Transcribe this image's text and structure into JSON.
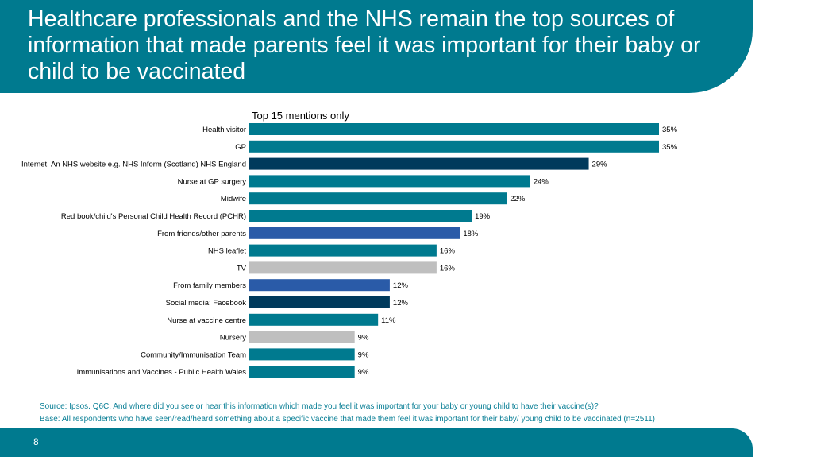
{
  "title": "Healthcare professionals and the NHS remain the top sources of information that made parents feel it was important for their baby or child to be vaccinated",
  "subtitle": "Top 15 mentions only",
  "notes": {
    "source": "Source: Ipsos. Q6C. And where did you see or hear this information which made you feel it was important for your baby or young child to have their vaccine(s)?",
    "base": "Base: All respondents who have seen/read/heard something about a specific vaccine that made them feel it was important for their baby/ young child to be vaccinated (n=2511)"
  },
  "page_number": "8",
  "colors": {
    "brand_teal": "#007a8f",
    "navy": "#003a5c",
    "blue": "#2a5ba8",
    "grey": "#bfbfbf"
  },
  "chart_data": {
    "type": "bar",
    "orientation": "horizontal",
    "xlim": [
      0,
      35
    ],
    "grid": false,
    "value_suffix": "%",
    "categories": [
      "Health visitor",
      "GP",
      "Internet: An NHS website e.g. NHS Inform (Scotland) NHS England",
      "Nurse at GP surgery",
      "Midwife",
      "Red book/child's Personal Child Health Record (PCHR)",
      "From friends/other parents",
      "NHS leaflet",
      "TV",
      "From family members",
      "Social media: Facebook",
      "Nurse at vaccine centre",
      "Nursery",
      "Community/Immunisation Team",
      "Immunisations and Vaccines - Public Health Wales"
    ],
    "values": [
      35,
      35,
      29,
      24,
      22,
      19,
      18,
      16,
      16,
      12,
      12,
      11,
      9,
      9,
      9
    ],
    "labels": [
      "35%",
      "35%",
      "29%",
      "24%",
      "22%",
      "19%",
      "18%",
      "16%",
      "16%",
      "12%",
      "12%",
      "11%",
      "9%",
      "9%",
      "9%"
    ],
    "bar_colors": [
      "#007a8f",
      "#007a8f",
      "#003a5c",
      "#007a8f",
      "#007a8f",
      "#007a8f",
      "#2a5ba8",
      "#007a8f",
      "#bfbfbf",
      "#2a5ba8",
      "#003a5c",
      "#007a8f",
      "#bfbfbf",
      "#007a8f",
      "#007a8f"
    ]
  }
}
